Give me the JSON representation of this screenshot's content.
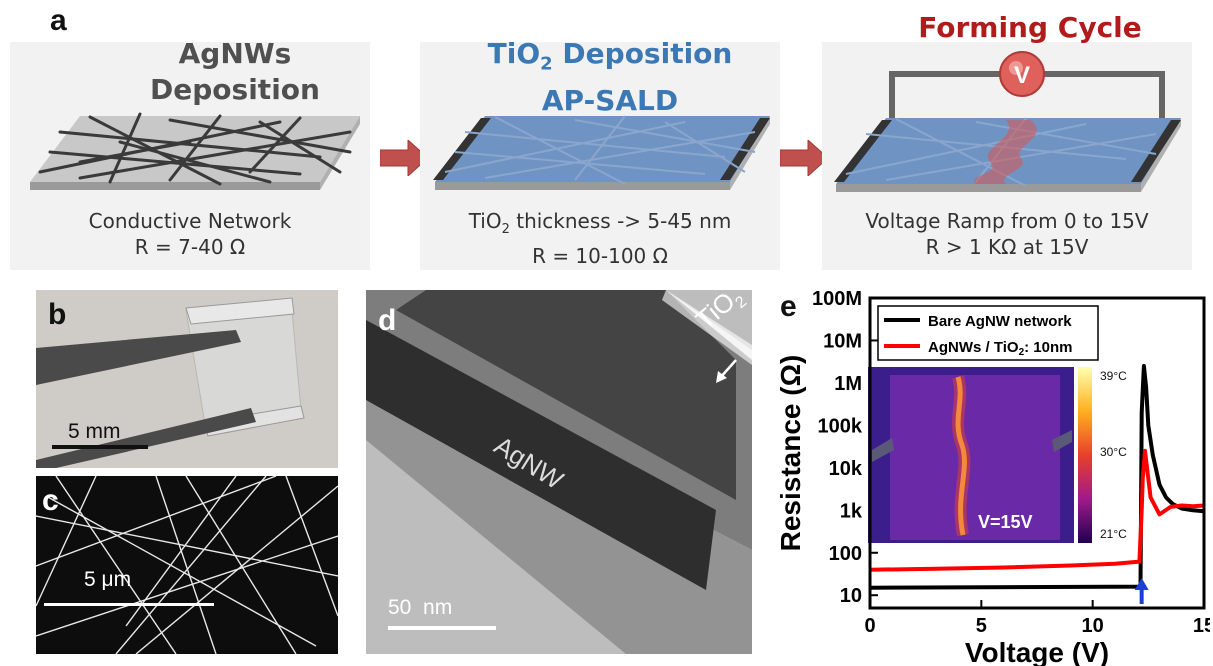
{
  "panel_a": {
    "letter": "a",
    "steps": [
      {
        "title_lines": [
          "AgNWs",
          "Deposition"
        ],
        "title_color": "#505050",
        "caption_line1": "Conductive Network",
        "caption_line2": "R = 7-40 Ω"
      },
      {
        "title_pre": "TiO",
        "title_sub": "2",
        "title_post": " Deposition",
        "title_line2": "AP-SALD",
        "title_color": "#3b78b4",
        "caption_pre": "TiO",
        "caption_sub": "2",
        "caption_post": " thickness -> 5-45 nm",
        "caption_line2": "R = 10-100 Ω"
      },
      {
        "title_lines": [
          "Forming Cycle"
        ],
        "title_color": "#b01c1c",
        "voltmeter_label": "V",
        "caption_line1": "Voltage Ramp from 0 to 15V",
        "caption_line2": "R > 1 KΩ at 15V"
      }
    ]
  },
  "panel_b": {
    "letter": "b",
    "scale_label": "5 mm"
  },
  "panel_c": {
    "letter": "c",
    "scale_label": "5 μm"
  },
  "panel_d": {
    "letter": "d",
    "scale_label": "50  nm",
    "wire_label": "AgNW",
    "coating_label_pre": "TiO",
    "coating_label_sub": "2"
  },
  "panel_e": {
    "letter": "e",
    "inset": {
      "voltage_label": "V=15V",
      "colorbar_ticks": [
        "39°C",
        "30°C",
        "21°C"
      ]
    },
    "chart_data": {
      "type": "line",
      "xlabel": "Voltage (V)",
      "ylabel": "Resistance (Ω)",
      "xlim": [
        0,
        15
      ],
      "ylim": [
        5,
        100000000
      ],
      "yscale": "log",
      "xticks": [
        0,
        5,
        10,
        15
      ],
      "yticks": [
        {
          "value": 10,
          "label": "10"
        },
        {
          "value": 100,
          "label": "100"
        },
        {
          "value": 1000,
          "label": "1k"
        },
        {
          "value": 10000,
          "label": "10k"
        },
        {
          "value": 100000,
          "label": "100k"
        },
        {
          "value": 1000000,
          "label": "1M"
        },
        {
          "value": 10000000,
          "label": "10M"
        },
        {
          "value": 100000000,
          "label": "100M"
        }
      ],
      "legend_position": "top-left",
      "arrow_x": 12.2,
      "series": [
        {
          "name": "Bare AgNW network",
          "color": "#000000",
          "x": [
            0,
            12.15,
            12.2,
            12.3,
            12.4,
            12.5,
            12.7,
            13.0,
            13.3,
            13.6,
            14.0,
            14.5,
            15.0
          ],
          "y": [
            15,
            16,
            200000,
            2500000,
            800000,
            100000,
            20000,
            4000,
            2000,
            1400,
            1100,
            1000,
            950
          ]
        },
        {
          "name": "AgNWs / TiO2: 10nm",
          "color": "#ff0000",
          "x": [
            0,
            3,
            6,
            9,
            11,
            12.1,
            12.2,
            12.25,
            12.35,
            12.6,
            13.0,
            13.5,
            14.0,
            14.5,
            15.0
          ],
          "y": [
            40,
            42,
            45,
            50,
            55,
            62,
            1000,
            6000,
            25000,
            2000,
            800,
            1200,
            1300,
            1250,
            1300
          ]
        }
      ]
    }
  },
  "colors": {
    "titanium_blue": "#3b78b4",
    "forming_red": "#b01c1c",
    "arrow_red": "#c0504d"
  }
}
